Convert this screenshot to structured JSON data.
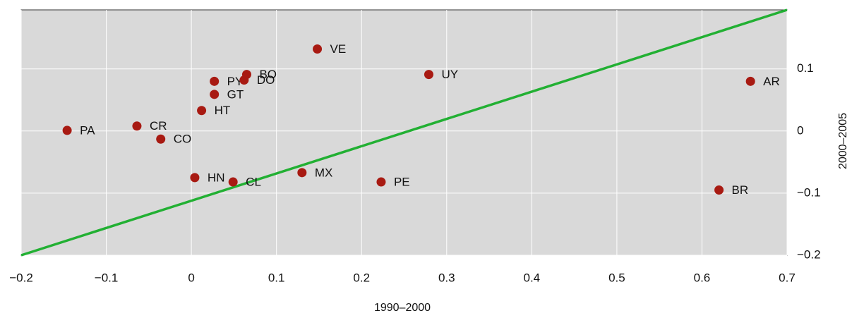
{
  "chart_data": {
    "type": "scatter",
    "x_label": "1990–2000",
    "y_label": "2000–2005",
    "series": [
      {
        "color": "#a81a12",
        "labels": [
          "PA",
          "CR",
          "CO",
          "HN",
          "HT",
          "GT",
          "PY",
          "DO",
          "BO",
          "CL",
          "MX",
          "VE",
          "PE",
          "UY",
          "BR",
          "AR"
        ],
        "x": [
          -0.146,
          -0.064,
          -0.036,
          0.004,
          0.012,
          0.027,
          0.027,
          0.062,
          0.065,
          0.049,
          0.13,
          0.148,
          0.223,
          0.279,
          0.62,
          0.657
        ],
        "values": [
          0.001,
          0.008,
          -0.013,
          -0.075,
          0.033,
          0.059,
          0.08,
          0.082,
          0.091,
          -0.082,
          -0.067,
          0.132,
          -0.082,
          0.091,
          -0.095,
          0.08
        ]
      }
    ],
    "reference_line": {
      "x": [
        -0.2,
        0.7
      ],
      "y": [
        -0.2,
        0.195
      ],
      "color": "#22b033"
    },
    "xlim": [
      -0.2,
      0.7
    ],
    "ylim": [
      -0.2,
      0.195
    ],
    "xticks": [
      {
        "value": -0.2,
        "label": "−0.2"
      },
      {
        "value": -0.1,
        "label": "−0.1"
      },
      0,
      0.1,
      0.2,
      0.3,
      0.4,
      0.5,
      0.6,
      0.7
    ],
    "yticks": [
      {
        "value": -0.2,
        "label": "−0.2"
      },
      {
        "value": -0.1,
        "label": "−0.1"
      },
      0,
      0.1
    ],
    "grid": true,
    "background": "#d9d9d9"
  }
}
